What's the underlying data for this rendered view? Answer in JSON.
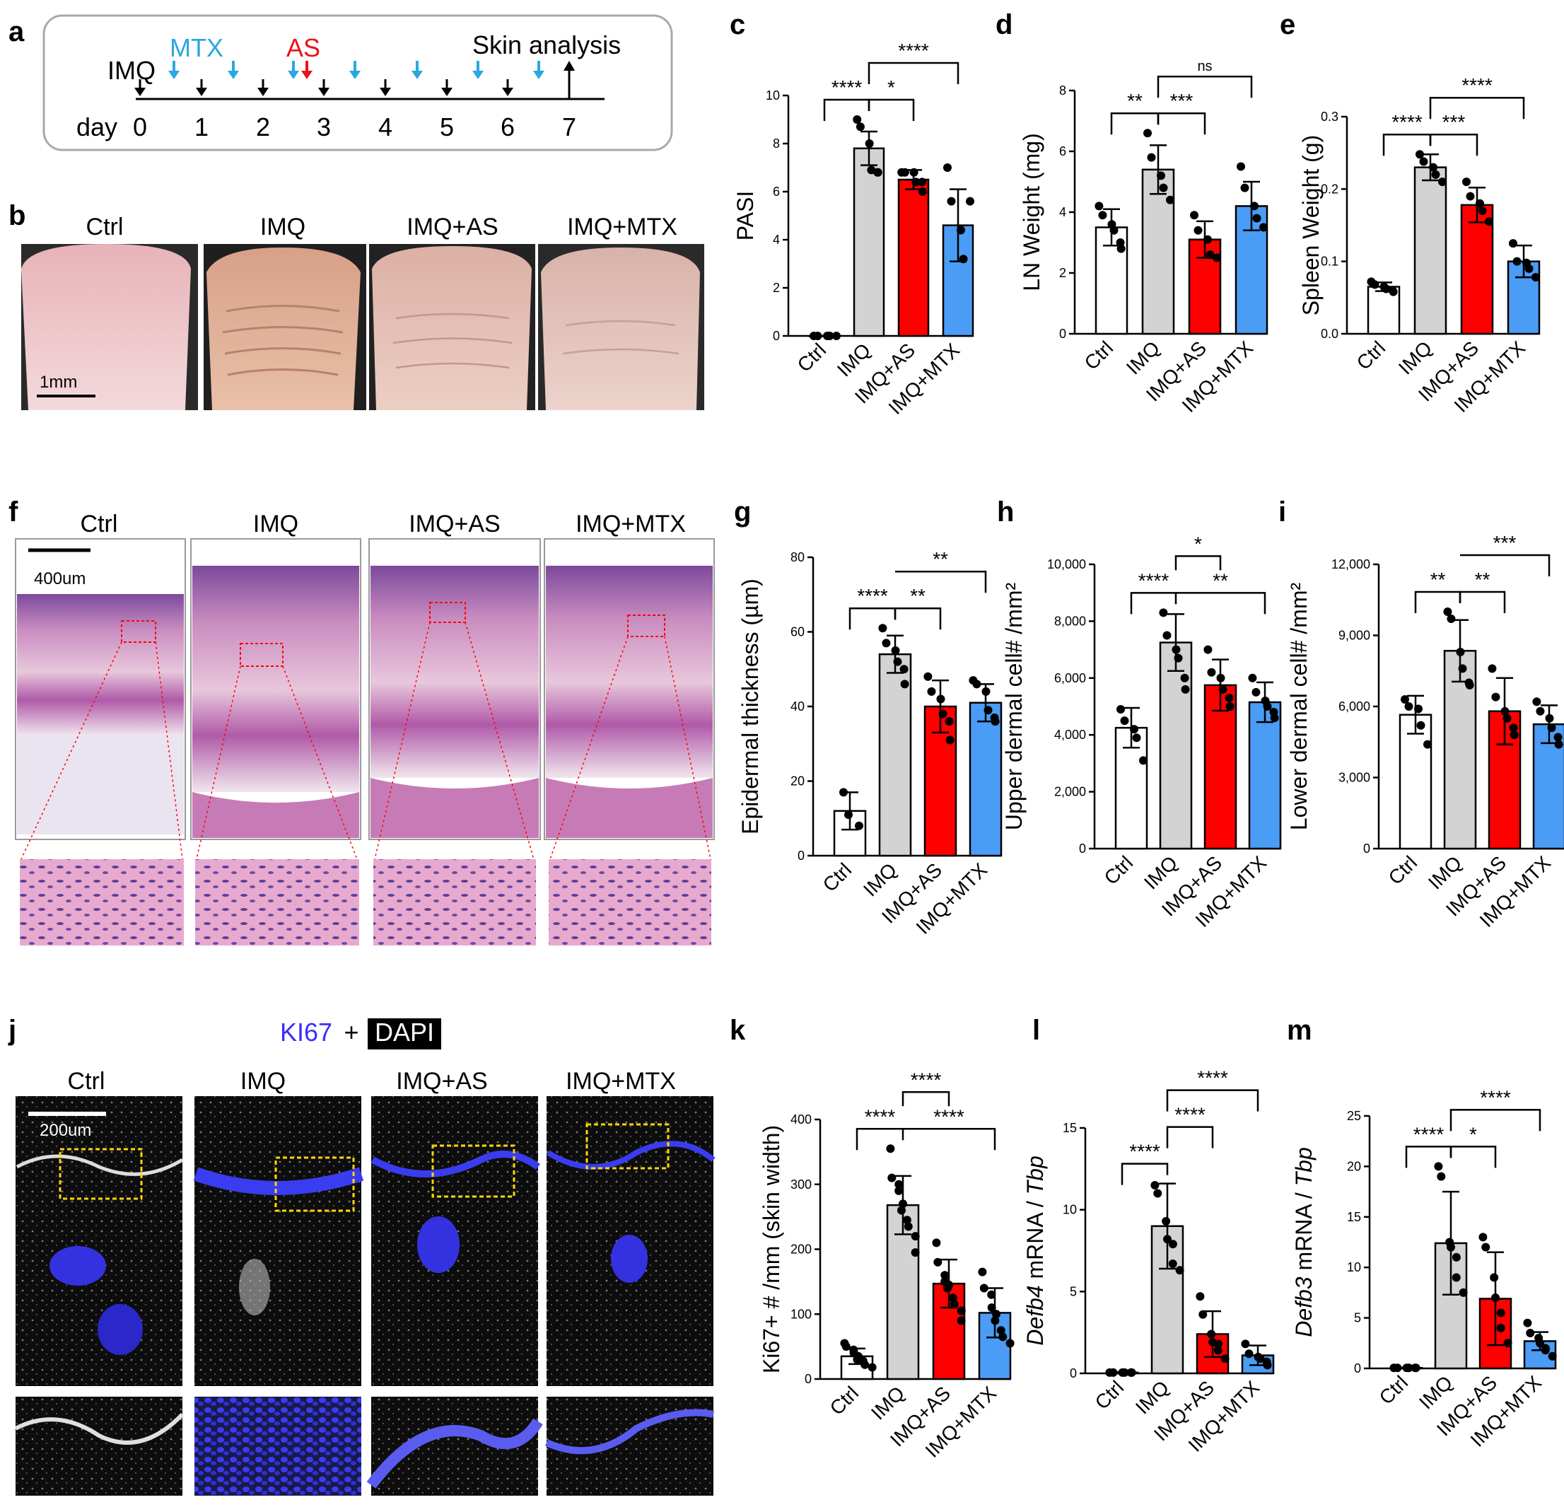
{
  "panel_letters": {
    "a": "a",
    "b": "b",
    "c": "c",
    "d": "d",
    "e": "e",
    "f": "f",
    "g": "g",
    "h": "h",
    "i": "i",
    "j": "j",
    "k": "k",
    "l": "l",
    "m": "m"
  },
  "groups": [
    "Ctrl",
    "IMQ",
    "IMQ+AS",
    "IMQ+MTX"
  ],
  "colors": {
    "ctrl": "#ffffff",
    "imq": "#d3d3d3",
    "as": "#ff0000",
    "mtx": "#4b9cf5",
    "mtx_text": "#29a8e0",
    "as_text": "#e8141b",
    "ki67_text": "#3c2bff"
  },
  "timeline": {
    "imq": "IMQ",
    "mtx": "MTX",
    "as": "AS",
    "skin_analysis": "Skin analysis",
    "day_label": "day",
    "days": [
      "0",
      "1",
      "2",
      "3",
      "4",
      "5",
      "6",
      "7"
    ]
  },
  "scale_bars": {
    "b": "1mm",
    "f": "400um",
    "j": "200um"
  },
  "stain": {
    "marker": "KI67",
    "plus": "+",
    "counterstain": "DAPI"
  },
  "chart_data": [
    {
      "panel": "c",
      "type": "bar",
      "categories": [
        "Ctrl",
        "IMQ",
        "IMQ+AS",
        "IMQ+MTX"
      ],
      "ylabel": "PASI",
      "ylim": [
        0,
        10
      ],
      "yticks": [
        "0",
        "2",
        "4",
        "6",
        "8",
        "10"
      ],
      "yticks_num": [
        0,
        2,
        4,
        6,
        8,
        10
      ],
      "values": [
        0,
        7.8,
        6.5,
        4.6
      ],
      "sd": [
        0,
        0.7,
        0.4,
        1.5
      ],
      "points": [
        [
          0,
          0,
          0,
          0,
          0
        ],
        [
          9,
          8.7,
          8,
          6.9,
          6.8,
          6.8
        ],
        [
          6.8,
          6.8,
          6.8,
          6.4,
          6.4,
          6.0
        ],
        [
          7,
          5.6,
          4.4,
          3.2,
          5.6
        ]
      ],
      "brackets": [
        {
          "from": 0,
          "to": 1,
          "label": "****",
          "level": 0
        },
        {
          "from": 1,
          "to": 2,
          "label": "*",
          "level": 0
        },
        {
          "from": 1,
          "to": 3,
          "label": "****",
          "level": 1
        }
      ]
    },
    {
      "panel": "d",
      "type": "bar",
      "categories": [
        "Ctrl",
        "IMQ",
        "IMQ+AS",
        "IMQ+MTX"
      ],
      "ylabel": "LN Weight (mg)",
      "ylim": [
        0,
        8
      ],
      "yticks": [
        "0",
        "2",
        "4",
        "6",
        "8"
      ],
      "yticks_num": [
        0,
        2,
        4,
        6,
        8
      ],
      "values": [
        3.5,
        5.4,
        3.1,
        4.2
      ],
      "sd": [
        0.6,
        0.8,
        0.6,
        0.8
      ],
      "points": [
        [
          4.2,
          3.9,
          3.6,
          3.4,
          3.0,
          2.8
        ],
        [
          6.6,
          5.8,
          5.2,
          4.8,
          4.4
        ],
        [
          3.9,
          3.4,
          3.1,
          2.6,
          2.5
        ],
        [
          5.5,
          4.8,
          4.2,
          3.8,
          3.5
        ]
      ],
      "brackets": [
        {
          "from": 0,
          "to": 1,
          "label": "**",
          "level": 0
        },
        {
          "from": 1,
          "to": 2,
          "label": "***",
          "level": 0
        },
        {
          "from": 1,
          "to": 3,
          "label": "ns",
          "level": 1
        }
      ]
    },
    {
      "panel": "e",
      "type": "bar",
      "categories": [
        "Ctrl",
        "IMQ",
        "IMQ+AS",
        "IMQ+MTX"
      ],
      "ylabel": "Spleen Weight (g)",
      "ylim": [
        0,
        0.3
      ],
      "yticks": [
        "0.0",
        "0.1",
        "0.2",
        "0.3"
      ],
      "yticks_num": [
        0,
        0.1,
        0.2,
        0.3
      ],
      "values": [
        0.065,
        0.23,
        0.178,
        0.1
      ],
      "sd": [
        0.006,
        0.018,
        0.024,
        0.022
      ],
      "points": [
        [
          0.072,
          0.068,
          0.065,
          0.062,
          0.06,
          0.058
        ],
        [
          0.248,
          0.238,
          0.23,
          0.22,
          0.21
        ],
        [
          0.21,
          0.19,
          0.18,
          0.17,
          0.155
        ],
        [
          0.125,
          0.1,
          0.098,
          0.09,
          0.078
        ]
      ],
      "brackets": [
        {
          "from": 0,
          "to": 1,
          "label": "****",
          "level": 0
        },
        {
          "from": 1,
          "to": 2,
          "label": "***",
          "level": 0
        },
        {
          "from": 1,
          "to": 3,
          "label": "****",
          "level": 1
        }
      ]
    },
    {
      "panel": "g",
      "type": "bar",
      "categories": [
        "Ctrl",
        "IMQ",
        "IMQ+AS",
        "IMQ+MTX"
      ],
      "ylabel": "Epidermal thickness (µm)",
      "ylim": [
        0,
        80
      ],
      "yticks": [
        "0",
        "20",
        "40",
        "60",
        "80"
      ],
      "yticks_num": [
        0,
        20,
        40,
        60,
        80
      ],
      "values": [
        12,
        54,
        40,
        41
      ],
      "sd": [
        5,
        5,
        7,
        5
      ],
      "points": [
        [
          17,
          11,
          8
        ],
        [
          61,
          57,
          55,
          52,
          50,
          46
        ],
        [
          48,
          44,
          42,
          38,
          36,
          31
        ],
        [
          47,
          46,
          44,
          39,
          37,
          36
        ]
      ],
      "brackets": [
        {
          "from": 0,
          "to": 1,
          "label": "****",
          "level": 0
        },
        {
          "from": 1,
          "to": 2,
          "label": "**",
          "level": 0
        },
        {
          "from": 1,
          "to": 3,
          "label": "**",
          "level": 1,
          "open_left": true
        }
      ]
    },
    {
      "panel": "h",
      "type": "bar",
      "categories": [
        "Ctrl",
        "IMQ",
        "IMQ+AS",
        "IMQ+MTX"
      ],
      "ylabel": "Upper dermal cell# /mm²",
      "ylim": [
        0,
        10000
      ],
      "yticks": [
        "0",
        "2,000",
        "4,000",
        "6,000",
        "8,000",
        "10,000"
      ],
      "yticks_num": [
        0,
        2000,
        4000,
        6000,
        8000,
        10000
      ],
      "values": [
        4250,
        7250,
        5750,
        5150
      ],
      "sd": [
        700,
        1000,
        900,
        700
      ],
      "points": [
        [
          4900,
          4500,
          4200,
          3900,
          3100
        ],
        [
          8300,
          7500,
          7000,
          6700,
          6000,
          5600
        ],
        [
          7000,
          6200,
          6000,
          5600,
          5300,
          5000
        ],
        [
          6000,
          5500,
          5200,
          5000,
          4800,
          4600
        ]
      ],
      "brackets": [
        {
          "from": 0,
          "to": 1,
          "label": "****",
          "level": 0
        },
        {
          "from": 1,
          "to": 3,
          "label": "**",
          "level": 0,
          "open_left": true
        },
        {
          "from": 1,
          "to": 2,
          "label": "*",
          "level": 1,
          "floating": true
        }
      ]
    },
    {
      "panel": "i",
      "type": "bar",
      "categories": [
        "Ctrl",
        "IMQ",
        "IMQ+AS",
        "IMQ+MTX"
      ],
      "ylabel": "Lower dermal cell# /mm²",
      "ylim": [
        0,
        12000
      ],
      "yticks": [
        "0",
        "3,000",
        "6,000",
        "9,000",
        "12,000"
      ],
      "yticks_num": [
        0,
        3000,
        6000,
        9000,
        12000
      ],
      "values": [
        5650,
        8350,
        5800,
        5250
      ],
      "sd": [
        800,
        1300,
        1400,
        800
      ],
      "points": [
        [
          6300,
          6000,
          5900,
          5200,
          4400
        ],
        [
          10000,
          9700,
          8300,
          7600,
          7000,
          6900
        ],
        [
          7600,
          6400,
          5800,
          5500,
          5100,
          4800
        ],
        [
          6200,
          5800,
          5500,
          5100,
          4700,
          4400
        ]
      ],
      "brackets": [
        {
          "from": 0,
          "to": 1,
          "label": "**",
          "level": 0
        },
        {
          "from": 1,
          "to": 2,
          "label": "**",
          "level": 0
        },
        {
          "from": 1,
          "to": 3,
          "label": "***",
          "level": 1,
          "open_left": true
        }
      ]
    },
    {
      "panel": "k",
      "type": "bar",
      "categories": [
        "Ctrl",
        "IMQ",
        "IMQ+AS",
        "IMQ+MTX"
      ],
      "ylabel": "Ki67+ # /mm (skin width)",
      "ylim": [
        0,
        400
      ],
      "yticks": [
        "0",
        "100",
        "200",
        "300",
        "400"
      ],
      "yticks_num": [
        0,
        100,
        200,
        300,
        400
      ],
      "values": [
        35,
        268,
        147,
        102
      ],
      "sd": [
        12,
        45,
        37,
        38
      ],
      "points": [
        [
          55,
          50,
          45,
          40,
          35,
          30,
          28,
          22,
          18
        ],
        [
          355,
          310,
          300,
          290,
          270,
          260,
          245,
          235,
          220,
          195
        ],
        [
          210,
          180,
          160,
          150,
          145,
          140,
          125,
          115,
          105,
          90
        ],
        [
          165,
          140,
          130,
          110,
          100,
          90,
          75,
          65,
          55
        ]
      ],
      "brackets": [
        {
          "from": 0,
          "to": 1,
          "label": "****",
          "level": 0
        },
        {
          "from": 1,
          "to": 3,
          "label": "****",
          "level": 0,
          "open_left": true
        },
        {
          "from": 1,
          "to": 2,
          "label": "****",
          "level": 1,
          "floating": true
        }
      ]
    },
    {
      "panel": "l",
      "type": "bar",
      "categories": [
        "Ctrl",
        "IMQ",
        "IMQ+AS",
        "IMQ+MTX"
      ],
      "ylabel_italic": "Defb4",
      "ylabel_mid": " mRNA / ",
      "ylabel_italic2": "Tbp",
      "ylim": [
        0,
        15
      ],
      "yticks": [
        "0",
        "5",
        "10",
        "15"
      ],
      "yticks_num": [
        0,
        5,
        10,
        15
      ],
      "values": [
        0.05,
        9.0,
        2.4,
        1.1
      ],
      "sd": [
        0.02,
        2.6,
        1.4,
        0.6
      ],
      "points": [
        [
          0.05,
          0.05,
          0.05,
          0.05,
          0.05,
          0.05
        ],
        [
          11.5,
          11,
          9.3,
          8.2,
          7.9,
          6.7,
          6.3
        ],
        [
          4.7,
          3.6,
          2.4,
          1.9,
          1.8,
          1.4,
          0.9
        ],
        [
          1.8,
          1.2,
          1.0,
          0.9,
          0.7,
          0.5
        ]
      ],
      "brackets": [
        {
          "from": 0,
          "to": 1,
          "label": "****",
          "level": 0
        },
        {
          "from": 1,
          "to": 2,
          "label": "****",
          "level": 1
        },
        {
          "from": 1,
          "to": 3,
          "label": "****",
          "level": 2
        }
      ]
    },
    {
      "panel": "m",
      "type": "bar",
      "categories": [
        "Ctrl",
        "IMQ",
        "IMQ+AS",
        "IMQ+MTX"
      ],
      "ylabel_italic": "Defb3",
      "ylabel_mid": " mRNA / ",
      "ylabel_italic2": "Tbp",
      "ylim": [
        0,
        25
      ],
      "yticks": [
        "0",
        "5",
        "10",
        "15",
        "20",
        "25"
      ],
      "yticks_num": [
        0,
        5,
        10,
        15,
        20,
        25
      ],
      "values": [
        0.05,
        12.4,
        6.9,
        2.7
      ],
      "sd": [
        0.02,
        5.1,
        4.6,
        0.9
      ],
      "points": [
        [
          0.05,
          0.05,
          0.05,
          0.05,
          0.05,
          0.05
        ],
        [
          20,
          19,
          12.5,
          12,
          11,
          9,
          7.5
        ],
        [
          13,
          12,
          9,
          7,
          5.5,
          4,
          2.5
        ],
        [
          4.5,
          3.5,
          3,
          2.5,
          2,
          1.8,
          1.2
        ]
      ],
      "brackets": [
        {
          "from": 0,
          "to": 1,
          "label": "****",
          "level": 0
        },
        {
          "from": 1,
          "to": 2,
          "label": "*",
          "level": 0
        },
        {
          "from": 1,
          "to": 3,
          "label": "****",
          "level": 1
        }
      ]
    }
  ]
}
